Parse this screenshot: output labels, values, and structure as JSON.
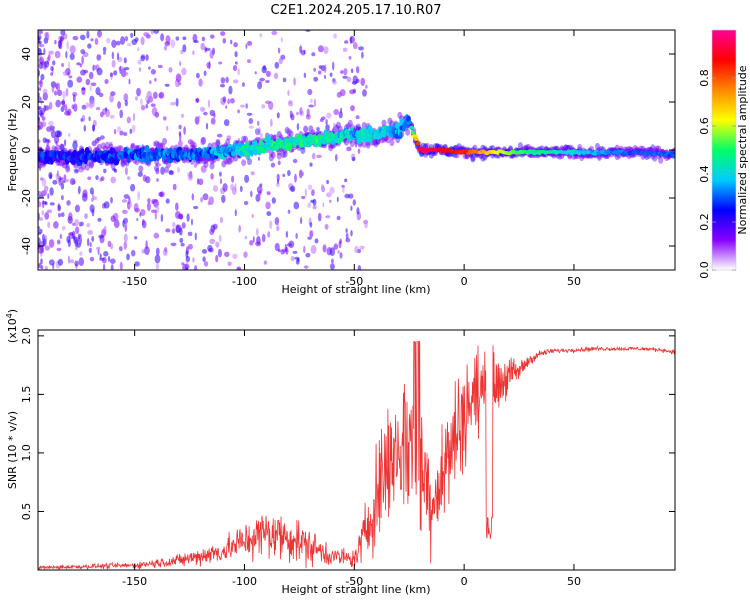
{
  "chart_data": [
    {
      "type": "heatmap",
      "title": "C2E1.2024.205.17.10.R07",
      "xlabel": "Height of straight line (km)",
      "ylabel": "Frequency (Hz)",
      "xlim": [
        -194,
        96
      ],
      "ylim": [
        -50,
        50
      ],
      "xticks": [
        -150,
        -100,
        -50,
        0,
        50
      ],
      "xtick_labels": [
        "-150",
        "-100",
        "-50",
        "0",
        "50"
      ],
      "yticks": [
        -40,
        -20,
        0,
        20,
        40
      ],
      "ytick_labels": [
        "-40",
        "-20",
        "0",
        "20",
        "40"
      ],
      "colorbar": {
        "label": "Normalized spectral amplitude",
        "range": [
          0,
          1
        ],
        "ticks": [
          0.0,
          0.2,
          0.4,
          0.6,
          0.8
        ],
        "tick_labels": [
          "0.0",
          "0.2",
          "0.4",
          "0.6",
          "0.8"
        ],
        "colormap": [
          "#ffffff",
          "#8800ff",
          "#0000ff",
          "#00ccff",
          "#00ff66",
          "#ffff00",
          "#ff8800",
          "#ff0000",
          "#ff0099"
        ]
      },
      "ridge": {
        "x": [
          -190,
          -170,
          -150,
          -130,
          -110,
          -100,
          -90,
          -80,
          -70,
          -60,
          -50,
          -40,
          -30,
          -25,
          -20,
          -10,
          0,
          10,
          20,
          40,
          60,
          80,
          95
        ],
        "freq": [
          -3,
          -3,
          -2,
          -2,
          -1,
          0,
          2,
          3,
          4,
          5,
          6,
          7,
          8,
          12,
          0,
          0,
          -1,
          -1,
          -1,
          -1,
          -1,
          -1,
          -2
        ],
        "amplitude": [
          0.25,
          0.25,
          0.3,
          0.3,
          0.35,
          0.4,
          0.45,
          0.45,
          0.45,
          0.45,
          0.4,
          0.4,
          0.35,
          0.3,
          0.95,
          0.9,
          0.85,
          0.7,
          0.55,
          0.45,
          0.35,
          0.3,
          0.3
        ]
      }
    },
    {
      "type": "line",
      "xlabel": "Height of straight line (km)",
      "ylabel": "SNR (10 * v/v)",
      "y_multiplier_label": "(x10",
      "y_multiplier_exp": "4",
      "y_multiplier_close": ")",
      "xlim": [
        -194,
        96
      ],
      "ylim": [
        0,
        20500
      ],
      "xticks": [
        -150,
        -100,
        -50,
        0,
        50
      ],
      "xtick_labels": [
        "-150",
        "-100",
        "-50",
        "0",
        "50"
      ],
      "yticks": [
        5000,
        10000,
        15000,
        20000
      ],
      "ytick_labels": [
        "0.5",
        "1.0",
        "1.5",
        "2.0"
      ],
      "color": "#ee3333",
      "envelope": {
        "x": [
          -194,
          -150,
          -130,
          -110,
          -100,
          -90,
          -80,
          -70,
          -60,
          -50,
          -45,
          -40,
          -35,
          -30,
          -25,
          -20,
          -15,
          -10,
          -5,
          0,
          5,
          10,
          15,
          20,
          25,
          30,
          35,
          40,
          50,
          60,
          70,
          80,
          90,
          96
        ],
        "y": [
          200,
          400,
          800,
          1600,
          2500,
          3200,
          2800,
          2000,
          1200,
          900,
          3000,
          6500,
          9000,
          10500,
          11000,
          9500,
          6000,
          8000,
          11000,
          13500,
          15000,
          15500,
          16000,
          16500,
          17000,
          18000,
          18500,
          18700,
          18800,
          18900,
          18900,
          18900,
          18800,
          18600
        ],
        "noise": [
          150,
          300,
          600,
          1200,
          1800,
          2500,
          2300,
          1800,
          1000,
          800,
          3000,
          5000,
          6000,
          7000,
          7500,
          7000,
          5000,
          5000,
          6000,
          5000,
          4500,
          4000,
          3000,
          2000,
          1000,
          600,
          300,
          250,
          200,
          200,
          200,
          200,
          200,
          200
        ]
      }
    }
  ]
}
